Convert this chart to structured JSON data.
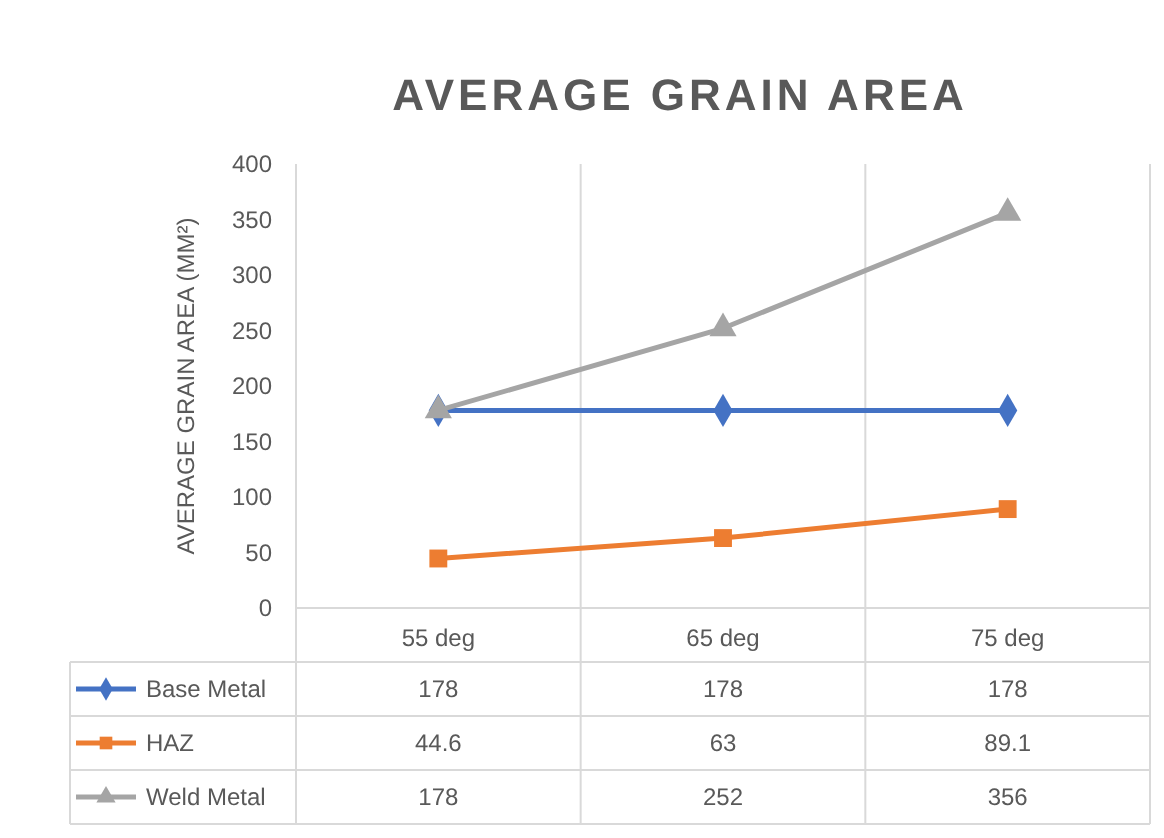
{
  "chart_data": {
    "type": "line",
    "title": "AVERAGE GRAIN AREA",
    "ylabel": "AVERAGE GRAIN AREA (MM²)",
    "categories": [
      "55 deg",
      "65 deg",
      "75 deg"
    ],
    "series": [
      {
        "name": "Base Metal",
        "color": "#4472c4",
        "marker": "diamond",
        "values": [
          178,
          178,
          178
        ]
      },
      {
        "name": "HAZ",
        "color": "#ed7d31",
        "marker": "square",
        "values": [
          44.6,
          63,
          89.1
        ]
      },
      {
        "name": "Weld Metal",
        "color": "#a5a5a5",
        "marker": "triangle",
        "values": [
          178,
          252,
          356
        ]
      }
    ],
    "ylim": [
      0,
      400
    ],
    "yticks": [
      0,
      50,
      100,
      150,
      200,
      250,
      300,
      350,
      400
    ],
    "grid": "x",
    "data_labels": true,
    "legend": "bottom",
    "line_style": "solid"
  }
}
